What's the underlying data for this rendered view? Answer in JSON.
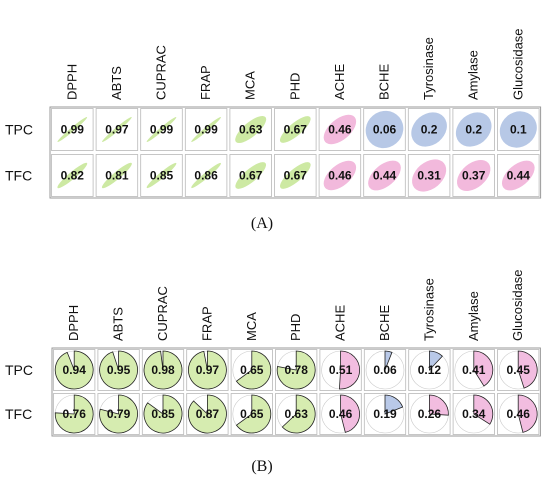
{
  "chart_data": [
    {
      "type": "heatmap",
      "style": "ellipse",
      "panel_label": "(A)",
      "columns": [
        "DPPH",
        "ABTS",
        "CUPRAC",
        "FRAP",
        "MCA",
        "PHD",
        "ACHE",
        "BCHE",
        "Tyrosinase",
        "Amylase",
        "Glucosidase"
      ],
      "rows": [
        "TPC",
        "TFC"
      ],
      "values": [
        [
          0.99,
          0.97,
          0.99,
          0.99,
          0.63,
          0.67,
          0.46,
          0.06,
          0.2,
          0.2,
          0.1
        ],
        [
          0.82,
          0.81,
          0.85,
          0.86,
          0.67,
          0.67,
          0.46,
          0.44,
          0.31,
          0.37,
          0.44
        ]
      ],
      "value_labels": [
        [
          "0.99",
          "0.97",
          "0.99",
          "0.99",
          "0.63",
          "0.67",
          "0.46",
          "0.06",
          "0.2",
          "0.2",
          "0.1"
        ],
        [
          "0.82",
          "0.81",
          "0.85",
          "0.86",
          "0.67",
          "0.67",
          "0.46",
          "0.44",
          "0.31",
          "0.37",
          "0.44"
        ]
      ],
      "colors": {
        "green": "#cde9a3",
        "pink": "#f2b9dc",
        "blue": "#b7c8e6"
      },
      "cell_colors": [
        [
          "green",
          "green",
          "green",
          "green",
          "green",
          "green",
          "pink",
          "blue",
          "blue",
          "blue",
          "blue"
        ],
        [
          "green",
          "green",
          "green",
          "green",
          "green",
          "green",
          "pink",
          "pink",
          "pink",
          "pink",
          "pink"
        ]
      ]
    },
    {
      "type": "heatmap",
      "style": "pie",
      "panel_label": "(B)",
      "columns": [
        "DPPH",
        "ABTS",
        "CUPRAC",
        "FRAP",
        "MCA",
        "PHD",
        "ACHE",
        "BCHE",
        "Tyrosinase",
        "Amylase",
        "Glucosidase"
      ],
      "rows": [
        "TPC",
        "TFC"
      ],
      "values": [
        [
          0.94,
          0.95,
          0.98,
          0.97,
          0.65,
          0.78,
          0.51,
          0.06,
          0.12,
          0.41,
          0.45
        ],
        [
          0.76,
          0.79,
          0.85,
          0.87,
          0.65,
          0.63,
          0.46,
          0.19,
          0.26,
          0.34,
          0.46
        ]
      ],
      "value_labels": [
        [
          "0.94",
          "0.95",
          "0.98",
          "0.97",
          "0.65",
          "0.78",
          "0.51",
          "0.06",
          "0.12",
          "0.41",
          "0.45"
        ],
        [
          "0.76",
          "0.79",
          "0.85",
          "0.87",
          "0.65",
          "0.63",
          "0.46",
          "0.19",
          "0.26",
          "0.34",
          "0.46"
        ]
      ],
      "colors": {
        "green": "#d6ecb0",
        "pink": "#f2bde0",
        "blue": "#b9c9e8"
      },
      "cell_colors": [
        [
          "green",
          "green",
          "green",
          "green",
          "green",
          "green",
          "pink",
          "blue",
          "blue",
          "pink",
          "pink"
        ],
        [
          "green",
          "green",
          "green",
          "green",
          "green",
          "green",
          "pink",
          "blue",
          "pink",
          "pink",
          "pink"
        ]
      ]
    }
  ]
}
